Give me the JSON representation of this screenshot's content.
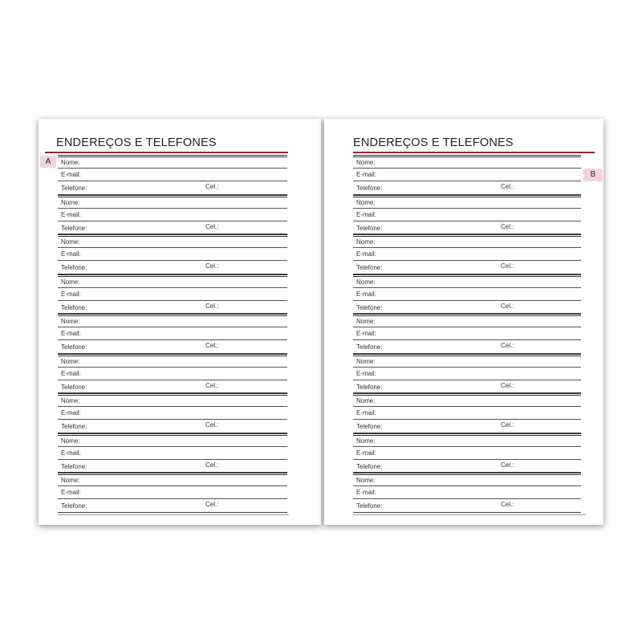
{
  "pages": [
    {
      "title": "ENDEREÇOS E TELEFONES",
      "tab_letter": "A"
    },
    {
      "title": "ENDEREÇOS E TELEFONES",
      "tab_letter": "B"
    }
  ],
  "entry_labels": {
    "name": "Nome:",
    "email": "E-mail:",
    "phone": "Telefone:",
    "cel": "Cel.:"
  },
  "colors": {
    "title_rule": "#8b2a3a",
    "tab": "#f3d3dc"
  }
}
